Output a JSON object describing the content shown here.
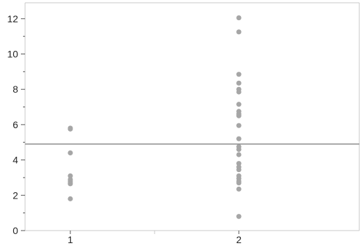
{
  "chart_data": {
    "type": "scatter",
    "title": "",
    "xlabel": "",
    "ylabel": "",
    "categories": [
      "1",
      "2"
    ],
    "ylim": [
      0,
      12.9
    ],
    "y_ticks": [
      0,
      2,
      4,
      6,
      8,
      10,
      12
    ],
    "y_minor_ticks": [
      1,
      3,
      5,
      7,
      9,
      11
    ],
    "reference_line": 4.9,
    "grid": false,
    "legend": "none",
    "point_color": "#a6a6a6",
    "line_color": "#8c8c8c",
    "series": [
      {
        "category": "1",
        "values": [
          5.8,
          5.75,
          4.4,
          3.1,
          2.9,
          2.8,
          2.7,
          2.65,
          1.8
        ]
      },
      {
        "category": "2",
        "values": [
          12.05,
          11.25,
          8.85,
          8.35,
          8.0,
          7.85,
          7.15,
          6.75,
          6.6,
          6.5,
          5.95,
          5.2,
          4.75,
          4.6,
          4.3,
          3.8,
          3.6,
          3.45,
          3.1,
          2.95,
          2.8,
          2.7,
          2.35,
          0.8
        ]
      }
    ]
  }
}
